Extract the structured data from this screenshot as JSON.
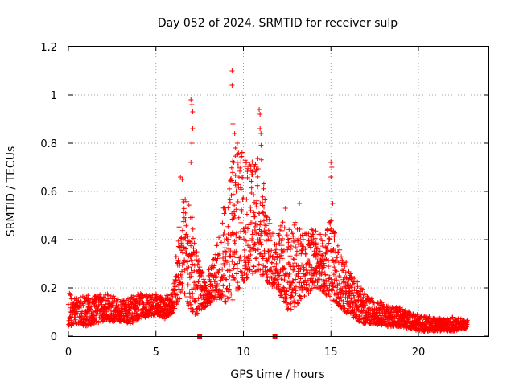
{
  "chart_data": {
    "type": "scatter",
    "title": "Day 052 of 2024, SRMTID for receiver sulp",
    "xlabel": "GPS time / hours",
    "ylabel": "SRMTID / TECUs",
    "xlim": [
      0,
      24
    ],
    "ylim": [
      0,
      1.2
    ],
    "xticks": [
      0,
      5,
      10,
      15,
      20
    ],
    "xtick_labels": [
      "0",
      "5",
      "10",
      "15",
      "20"
    ],
    "yticks": [
      0,
      0.2,
      0.4,
      0.6,
      0.8,
      1.0,
      1.2
    ],
    "ytick_labels": [
      "0",
      "0.2",
      "0.4",
      "0.6",
      "0.8",
      "1",
      "1.2"
    ],
    "grid": true,
    "marker": "plus",
    "color": "#ff0000",
    "gap_markers_x": [
      7.5,
      11.8
    ],
    "envelope": {
      "x": [
        0,
        0.5,
        1,
        1.5,
        2,
        2.5,
        3,
        3.5,
        4,
        4.5,
        5,
        5.5,
        6,
        6.3,
        6.6,
        6.9,
        7.2,
        7.5,
        7.8,
        8.2,
        8.6,
        9.0,
        9.4,
        9.8,
        10.2,
        10.6,
        11.0,
        11.4,
        11.8,
        12.2,
        12.6,
        13.0,
        13.4,
        13.8,
        14.2,
        14.6,
        15.0,
        15.4,
        15.8,
        16.2,
        16.6,
        17.0,
        17.5,
        18,
        18.5,
        19,
        19.5,
        20,
        20.5,
        21,
        21.5,
        22,
        22.5,
        22.8
      ],
      "low": [
        0.04,
        0.05,
        0.04,
        0.05,
        0.06,
        0.06,
        0.06,
        0.05,
        0.07,
        0.08,
        0.09,
        0.07,
        0.1,
        0.15,
        0.18,
        0.12,
        0.08,
        0.1,
        0.12,
        0.14,
        0.16,
        0.14,
        0.15,
        0.2,
        0.24,
        0.26,
        0.25,
        0.22,
        0.2,
        0.15,
        0.1,
        0.12,
        0.16,
        0.18,
        0.2,
        0.18,
        0.15,
        0.13,
        0.1,
        0.07,
        0.06,
        0.05,
        0.05,
        0.04,
        0.04,
        0.04,
        0.03,
        0.02,
        0.02,
        0.02,
        0.02,
        0.02,
        0.03,
        0.03
      ],
      "high": [
        0.18,
        0.16,
        0.17,
        0.17,
        0.18,
        0.17,
        0.15,
        0.16,
        0.18,
        0.17,
        0.18,
        0.16,
        0.2,
        0.45,
        0.62,
        0.55,
        0.45,
        0.3,
        0.25,
        0.3,
        0.42,
        0.6,
        0.75,
        0.8,
        0.74,
        0.72,
        0.8,
        0.5,
        0.42,
        0.48,
        0.46,
        0.5,
        0.42,
        0.45,
        0.45,
        0.4,
        0.5,
        0.38,
        0.32,
        0.25,
        0.22,
        0.17,
        0.15,
        0.14,
        0.12,
        0.12,
        0.1,
        0.09,
        0.08,
        0.08,
        0.07,
        0.08,
        0.07,
        0.07
      ]
    },
    "outliers": [
      {
        "x": 7.0,
        "y": 0.98
      },
      {
        "x": 7.05,
        "y": 0.96
      },
      {
        "x": 7.1,
        "y": 0.93
      },
      {
        "x": 7.1,
        "y": 0.86
      },
      {
        "x": 7.05,
        "y": 0.8
      },
      {
        "x": 7.0,
        "y": 0.72
      },
      {
        "x": 6.4,
        "y": 0.66
      },
      {
        "x": 6.5,
        "y": 0.65
      },
      {
        "x": 9.35,
        "y": 1.1
      },
      {
        "x": 9.35,
        "y": 1.04
      },
      {
        "x": 9.4,
        "y": 0.88
      },
      {
        "x": 9.5,
        "y": 0.84
      },
      {
        "x": 9.65,
        "y": 0.8
      },
      {
        "x": 9.55,
        "y": 0.78
      },
      {
        "x": 9.45,
        "y": 0.72
      },
      {
        "x": 10.9,
        "y": 0.94
      },
      {
        "x": 10.95,
        "y": 0.92
      },
      {
        "x": 10.95,
        "y": 0.86
      },
      {
        "x": 11.0,
        "y": 0.84
      },
      {
        "x": 15.0,
        "y": 0.72
      },
      {
        "x": 15.05,
        "y": 0.7
      },
      {
        "x": 15.0,
        "y": 0.66
      },
      {
        "x": 13.2,
        "y": 0.55
      },
      {
        "x": 12.4,
        "y": 0.53
      },
      {
        "x": 15.1,
        "y": 0.55
      }
    ]
  }
}
